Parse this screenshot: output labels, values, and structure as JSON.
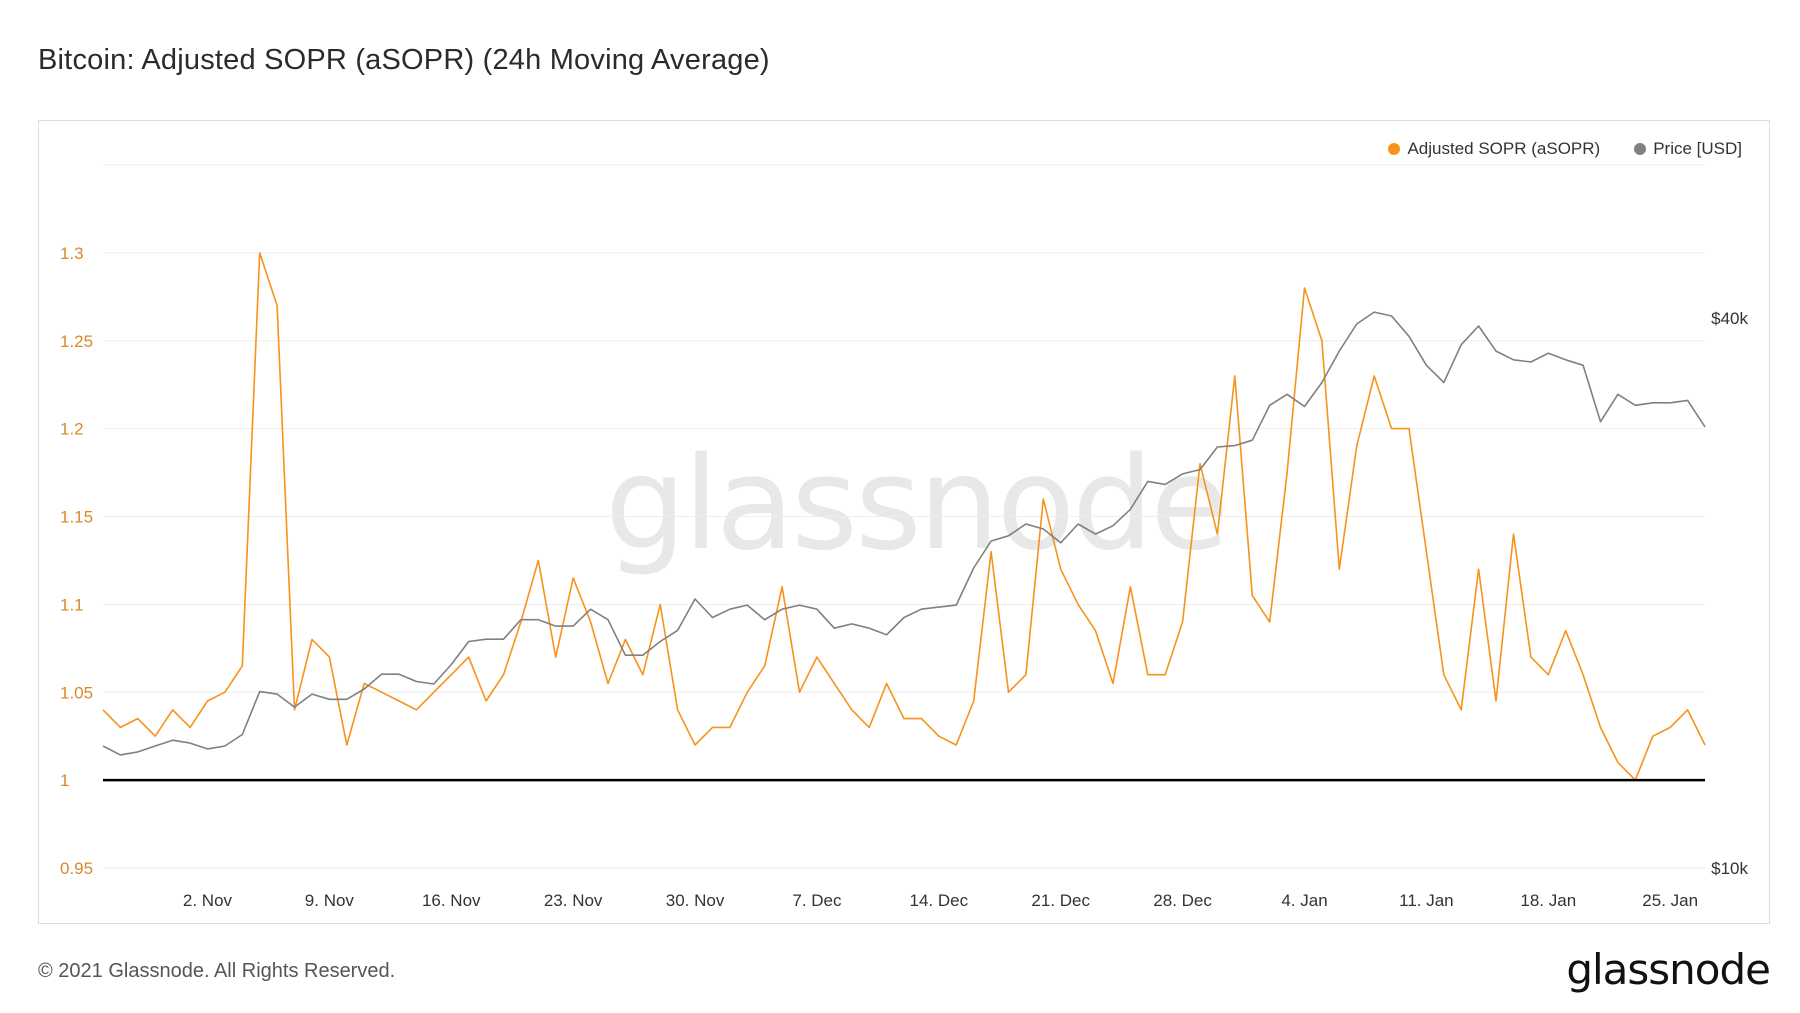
{
  "title": "Bitcoin: Adjusted SOPR (aSOPR) (24h Moving Average)",
  "footer": {
    "copyright": "© 2021 Glassnode. All Rights Reserved.",
    "logo": "glassnode"
  },
  "watermark": "glassnode",
  "colors": {
    "asopr": "#f7931a",
    "price": "#808080",
    "baseline": "#000000",
    "grid": "#eeeeee",
    "left_axis_text": "#d9892a",
    "right_axis_text": "#333333"
  },
  "chart_data": {
    "type": "line",
    "legend": [
      {
        "name": "Adjusted SOPR (aSOPR)",
        "color": "#f7931a"
      },
      {
        "name": "Price [USD]",
        "color": "#808080"
      }
    ],
    "legend_position": "top-right",
    "grid": true,
    "x_range": [
      "2020-10-27",
      "2021-01-27"
    ],
    "x_ticks": [
      "2. Nov",
      "9. Nov",
      "16. Nov",
      "23. Nov",
      "30. Nov",
      "7. Dec",
      "14. Dec",
      "21. Dec",
      "28. Dec",
      "4. Jan",
      "11. Jan",
      "18. Jan",
      "25. Jan"
    ],
    "y_left": {
      "ticks": [
        "0.95",
        "1",
        "1.05",
        "1.1",
        "1.15",
        "1.2",
        "1.25",
        "1.3"
      ],
      "range": [
        0.95,
        1.35
      ],
      "reference_line": 1
    },
    "y_right": {
      "ticks": [
        "$10k",
        "$40k"
      ],
      "tick_values": [
        10000,
        40000
      ],
      "scale": "log"
    },
    "series": [
      {
        "name": "Adjusted SOPR (aSOPR)",
        "axis": "left",
        "points": [
          [
            "2020-10-27",
            1.04
          ],
          [
            "2020-10-28",
            1.03
          ],
          [
            "2020-10-29",
            1.035
          ],
          [
            "2020-10-30",
            1.025
          ],
          [
            "2020-10-31",
            1.04
          ],
          [
            "2020-11-01",
            1.03
          ],
          [
            "2020-11-02",
            1.045
          ],
          [
            "2020-11-03",
            1.05
          ],
          [
            "2020-11-04",
            1.065
          ],
          [
            "2020-11-05",
            1.3
          ],
          [
            "2020-11-06",
            1.27
          ],
          [
            "2020-11-07",
            1.04
          ],
          [
            "2020-11-08",
            1.08
          ],
          [
            "2020-11-09",
            1.07
          ],
          [
            "2020-11-10",
            1.02
          ],
          [
            "2020-11-11",
            1.055
          ],
          [
            "2020-11-12",
            1.05
          ],
          [
            "2020-11-13",
            1.045
          ],
          [
            "2020-11-14",
            1.04
          ],
          [
            "2020-11-15",
            1.05
          ],
          [
            "2020-11-16",
            1.06
          ],
          [
            "2020-11-17",
            1.07
          ],
          [
            "2020-11-18",
            1.045
          ],
          [
            "2020-11-19",
            1.06
          ],
          [
            "2020-11-20",
            1.09
          ],
          [
            "2020-11-21",
            1.125
          ],
          [
            "2020-11-22",
            1.07
          ],
          [
            "2020-11-23",
            1.115
          ],
          [
            "2020-11-24",
            1.09
          ],
          [
            "2020-11-25",
            1.055
          ],
          [
            "2020-11-26",
            1.08
          ],
          [
            "2020-11-27",
            1.06
          ],
          [
            "2020-11-28",
            1.1
          ],
          [
            "2020-11-29",
            1.04
          ],
          [
            "2020-11-30",
            1.02
          ],
          [
            "2020-12-01",
            1.03
          ],
          [
            "2020-12-02",
            1.03
          ],
          [
            "2020-12-03",
            1.05
          ],
          [
            "2020-12-04",
            1.065
          ],
          [
            "2020-12-05",
            1.11
          ],
          [
            "2020-12-06",
            1.05
          ],
          [
            "2020-12-07",
            1.07
          ],
          [
            "2020-12-08",
            1.055
          ],
          [
            "2020-12-09",
            1.04
          ],
          [
            "2020-12-10",
            1.03
          ],
          [
            "2020-12-11",
            1.055
          ],
          [
            "2020-12-12",
            1.035
          ],
          [
            "2020-12-13",
            1.035
          ],
          [
            "2020-12-14",
            1.025
          ],
          [
            "2020-12-15",
            1.02
          ],
          [
            "2020-12-16",
            1.045
          ],
          [
            "2020-12-17",
            1.13
          ],
          [
            "2020-12-18",
            1.05
          ],
          [
            "2020-12-19",
            1.06
          ],
          [
            "2020-12-20",
            1.16
          ],
          [
            "2020-12-21",
            1.12
          ],
          [
            "2020-12-22",
            1.1
          ],
          [
            "2020-12-23",
            1.085
          ],
          [
            "2020-12-24",
            1.055
          ],
          [
            "2020-12-25",
            1.11
          ],
          [
            "2020-12-26",
            1.06
          ],
          [
            "2020-12-27",
            1.06
          ],
          [
            "2020-12-28",
            1.09
          ],
          [
            "2020-12-29",
            1.18
          ],
          [
            "2020-12-30",
            1.14
          ],
          [
            "2020-12-31",
            1.23
          ],
          [
            "2021-01-01",
            1.105
          ],
          [
            "2021-01-02",
            1.09
          ],
          [
            "2021-01-03",
            1.175
          ],
          [
            "2021-01-04",
            1.28
          ],
          [
            "2021-01-05",
            1.25
          ],
          [
            "2021-01-06",
            1.12
          ],
          [
            "2021-01-07",
            1.19
          ],
          [
            "2021-01-08",
            1.23
          ],
          [
            "2021-01-09",
            1.2
          ],
          [
            "2021-01-10",
            1.2
          ],
          [
            "2021-01-11",
            1.13
          ],
          [
            "2021-01-12",
            1.06
          ],
          [
            "2021-01-13",
            1.04
          ],
          [
            "2021-01-14",
            1.12
          ],
          [
            "2021-01-15",
            1.045
          ],
          [
            "2021-01-16",
            1.14
          ],
          [
            "2021-01-17",
            1.07
          ],
          [
            "2021-01-18",
            1.06
          ],
          [
            "2021-01-19",
            1.085
          ],
          [
            "2021-01-20",
            1.06
          ],
          [
            "2021-01-21",
            1.03
          ],
          [
            "2021-01-22",
            1.01
          ],
          [
            "2021-01-23",
            1.0
          ],
          [
            "2021-01-24",
            1.025
          ],
          [
            "2021-01-25",
            1.03
          ],
          [
            "2021-01-26",
            1.04
          ],
          [
            "2021-01-27",
            1.02
          ]
        ]
      },
      {
        "name": "Price [USD]",
        "axis": "right",
        "points": [
          [
            "2020-10-27",
            13600
          ],
          [
            "2020-10-28",
            13300
          ],
          [
            "2020-10-29",
            13400
          ],
          [
            "2020-10-30",
            13600
          ],
          [
            "2020-10-31",
            13800
          ],
          [
            "2020-11-01",
            13700
          ],
          [
            "2020-11-02",
            13500
          ],
          [
            "2020-11-03",
            13600
          ],
          [
            "2020-11-04",
            14000
          ],
          [
            "2020-11-05",
            15600
          ],
          [
            "2020-11-06",
            15500
          ],
          [
            "2020-11-07",
            15000
          ],
          [
            "2020-11-08",
            15500
          ],
          [
            "2020-11-09",
            15300
          ],
          [
            "2020-11-10",
            15300
          ],
          [
            "2020-11-11",
            15700
          ],
          [
            "2020-11-12",
            16300
          ],
          [
            "2020-11-13",
            16300
          ],
          [
            "2020-11-14",
            16000
          ],
          [
            "2020-11-15",
            15900
          ],
          [
            "2020-11-16",
            16700
          ],
          [
            "2020-11-17",
            17700
          ],
          [
            "2020-11-18",
            17800
          ],
          [
            "2020-11-19",
            17800
          ],
          [
            "2020-11-20",
            18700
          ],
          [
            "2020-11-21",
            18700
          ],
          [
            "2020-11-22",
            18400
          ],
          [
            "2020-11-23",
            18400
          ],
          [
            "2020-11-24",
            19200
          ],
          [
            "2020-11-25",
            18700
          ],
          [
            "2020-11-26",
            17100
          ],
          [
            "2020-11-27",
            17100
          ],
          [
            "2020-11-28",
            17700
          ],
          [
            "2020-11-29",
            18200
          ],
          [
            "2020-11-30",
            19700
          ],
          [
            "2020-12-01",
            18800
          ],
          [
            "2020-12-02",
            19200
          ],
          [
            "2020-12-03",
            19400
          ],
          [
            "2020-12-04",
            18700
          ],
          [
            "2020-12-05",
            19200
          ],
          [
            "2020-12-06",
            19400
          ],
          [
            "2020-12-07",
            19200
          ],
          [
            "2020-12-08",
            18300
          ],
          [
            "2020-12-09",
            18500
          ],
          [
            "2020-12-10",
            18300
          ],
          [
            "2020-12-11",
            18000
          ],
          [
            "2020-12-12",
            18800
          ],
          [
            "2020-12-13",
            19200
          ],
          [
            "2020-12-14",
            19300
          ],
          [
            "2020-12-15",
            19400
          ],
          [
            "2020-12-16",
            21300
          ],
          [
            "2020-12-17",
            22800
          ],
          [
            "2020-12-18",
            23100
          ],
          [
            "2020-12-19",
            23800
          ],
          [
            "2020-12-20",
            23500
          ],
          [
            "2020-12-21",
            22700
          ],
          [
            "2020-12-22",
            23800
          ],
          [
            "2020-12-23",
            23200
          ],
          [
            "2020-12-24",
            23700
          ],
          [
            "2020-12-25",
            24700
          ],
          [
            "2020-12-26",
            26500
          ],
          [
            "2020-12-27",
            26300
          ],
          [
            "2020-12-28",
            27000
          ],
          [
            "2020-12-29",
            27300
          ],
          [
            "2020-12-30",
            28900
          ],
          [
            "2020-12-31",
            29000
          ],
          [
            "2021-01-01",
            29400
          ],
          [
            "2021-01-02",
            32100
          ],
          [
            "2021-01-03",
            33000
          ],
          [
            "2021-01-04",
            32000
          ],
          [
            "2021-01-05",
            34000
          ],
          [
            "2021-01-06",
            36800
          ],
          [
            "2021-01-07",
            39400
          ],
          [
            "2021-01-08",
            40600
          ],
          [
            "2021-01-09",
            40200
          ],
          [
            "2021-01-10",
            38200
          ],
          [
            "2021-01-11",
            35500
          ],
          [
            "2021-01-12",
            34000
          ],
          [
            "2021-01-13",
            37400
          ],
          [
            "2021-01-14",
            39200
          ],
          [
            "2021-01-15",
            36800
          ],
          [
            "2021-01-16",
            36000
          ],
          [
            "2021-01-17",
            35800
          ],
          [
            "2021-01-18",
            36600
          ],
          [
            "2021-01-19",
            36000
          ],
          [
            "2021-01-20",
            35500
          ],
          [
            "2021-01-21",
            30800
          ],
          [
            "2021-01-22",
            33000
          ],
          [
            "2021-01-23",
            32100
          ],
          [
            "2021-01-24",
            32300
          ],
          [
            "2021-01-25",
            32300
          ],
          [
            "2021-01-26",
            32500
          ],
          [
            "2021-01-27",
            30400
          ]
        ]
      }
    ]
  }
}
